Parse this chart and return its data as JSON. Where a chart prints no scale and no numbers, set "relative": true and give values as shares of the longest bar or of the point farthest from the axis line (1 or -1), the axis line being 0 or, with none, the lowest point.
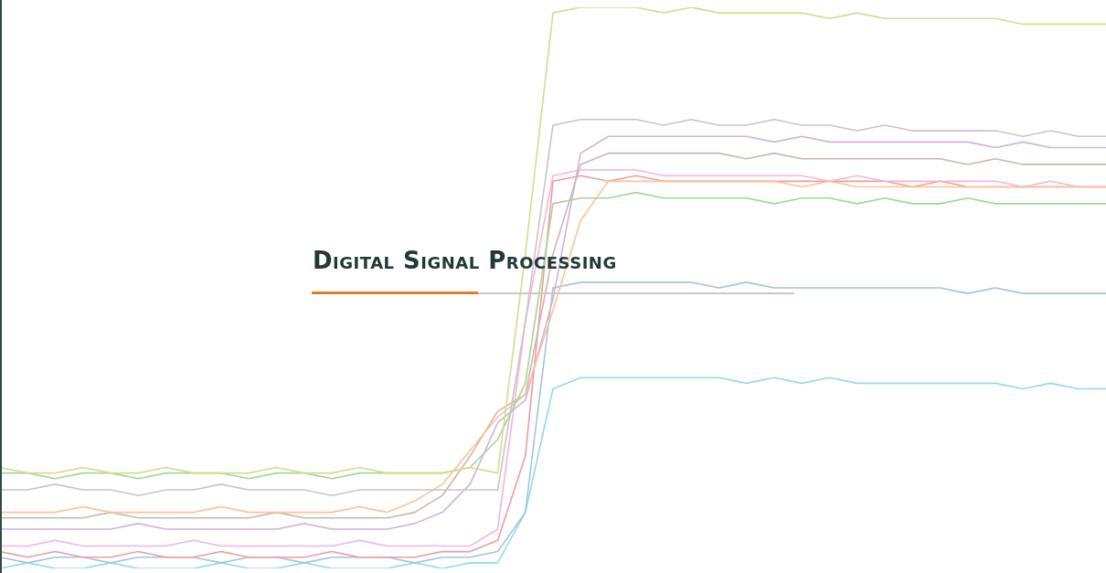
{
  "chart_data": {
    "type": "line",
    "title": "Digital Signal Processing",
    "relative": true,
    "legend": false,
    "marker": "none",
    "line_style": "solid",
    "categories": [
      null,
      null,
      null,
      null,
      null,
      null,
      null,
      null,
      null,
      null,
      null,
      null,
      null,
      null,
      null,
      null,
      null,
      null,
      null,
      null,
      null,
      null,
      null,
      null,
      null,
      null,
      null,
      null,
      null,
      null,
      null,
      null,
      null,
      null,
      null,
      null,
      null,
      null,
      null,
      null,
      null
    ],
    "series": [
      {
        "color": "#d5dc8e",
        "values": [
          0.18,
          0.17,
          0.17,
          0.18,
          0.17,
          0.17,
          0.18,
          0.17,
          0.17,
          0.17,
          0.18,
          0.17,
          0.17,
          0.18,
          0.17,
          0.17,
          0.17,
          0.18,
          0.17,
          0.56,
          0.99,
          1.0,
          1.0,
          1.0,
          0.99,
          1.0,
          0.99,
          0.99,
          0.99,
          0.99,
          0.98,
          0.99,
          0.98,
          0.98,
          0.98,
          0.98,
          0.98,
          0.97,
          0.97,
          0.97,
          0.97
        ]
      },
      {
        "color": "#a3d69c",
        "values": [
          0.17,
          0.17,
          0.16,
          0.17,
          0.17,
          0.16,
          0.17,
          0.17,
          0.17,
          0.16,
          0.17,
          0.17,
          0.16,
          0.17,
          0.17,
          0.17,
          0.17,
          0.18,
          0.23,
          0.33,
          0.65,
          0.66,
          0.66,
          0.67,
          0.66,
          0.66,
          0.66,
          0.66,
          0.65,
          0.66,
          0.66,
          0.65,
          0.66,
          0.65,
          0.65,
          0.66,
          0.65,
          0.65,
          0.65,
          0.65,
          0.65
        ]
      },
      {
        "color": "#c9c5c5",
        "values": [
          0.14,
          0.14,
          0.15,
          0.14,
          0.14,
          0.13,
          0.14,
          0.14,
          0.15,
          0.14,
          0.14,
          0.14,
          0.13,
          0.14,
          0.14,
          0.14,
          0.14,
          0.14,
          0.14,
          0.44,
          0.79,
          0.8,
          0.8,
          0.8,
          0.79,
          0.8,
          0.79,
          0.79,
          0.8,
          0.79,
          0.79,
          0.78,
          0.79,
          0.78,
          0.78,
          0.78,
          0.78,
          0.77,
          0.78,
          0.77,
          0.77
        ]
      },
      {
        "color": "#fdc293",
        "values": [
          0.1,
          0.1,
          0.1,
          0.11,
          0.1,
          0.1,
          0.1,
          0.1,
          0.11,
          0.1,
          0.1,
          0.1,
          0.1,
          0.11,
          0.1,
          0.12,
          0.15,
          0.21,
          0.27,
          0.31,
          0.46,
          0.62,
          0.69,
          0.69,
          0.69,
          0.69,
          0.69,
          0.69,
          0.69,
          0.68,
          0.69,
          0.68,
          0.68,
          0.68,
          0.68,
          0.68,
          0.68,
          0.68,
          0.68,
          0.68,
          0.68
        ]
      },
      {
        "color": "#cdb6ae",
        "values": [
          0.09,
          0.09,
          0.09,
          0.09,
          0.1,
          0.09,
          0.09,
          0.09,
          0.09,
          0.09,
          0.1,
          0.09,
          0.09,
          0.09,
          0.09,
          0.1,
          0.13,
          0.2,
          0.28,
          0.31,
          0.56,
          0.72,
          0.74,
          0.74,
          0.74,
          0.74,
          0.74,
          0.73,
          0.74,
          0.73,
          0.73,
          0.73,
          0.73,
          0.73,
          0.73,
          0.72,
          0.73,
          0.72,
          0.72,
          0.72,
          0.72
        ]
      },
      {
        "color": "#cdb3e2",
        "values": [
          0.07,
          0.07,
          0.07,
          0.07,
          0.07,
          0.08,
          0.07,
          0.07,
          0.07,
          0.07,
          0.07,
          0.08,
          0.07,
          0.07,
          0.07,
          0.08,
          0.1,
          0.15,
          0.26,
          0.3,
          0.48,
          0.74,
          0.77,
          0.77,
          0.77,
          0.77,
          0.77,
          0.77,
          0.76,
          0.77,
          0.76,
          0.76,
          0.76,
          0.76,
          0.76,
          0.76,
          0.75,
          0.76,
          0.75,
          0.75,
          0.75
        ]
      },
      {
        "color": "#f4b4da",
        "values": [
          0.04,
          0.04,
          0.05,
          0.04,
          0.04,
          0.04,
          0.04,
          0.05,
          0.04,
          0.04,
          0.04,
          0.04,
          0.04,
          0.05,
          0.04,
          0.04,
          0.04,
          0.04,
          0.07,
          0.44,
          0.7,
          0.71,
          0.71,
          0.71,
          0.7,
          0.7,
          0.7,
          0.7,
          0.7,
          0.7,
          0.69,
          0.7,
          0.69,
          0.69,
          0.69,
          0.69,
          0.69,
          0.68,
          0.69,
          0.68,
          0.68
        ]
      },
      {
        "color": "#ef9c9c",
        "values": [
          0.03,
          0.02,
          0.03,
          0.02,
          0.02,
          0.03,
          0.02,
          0.02,
          0.03,
          0.02,
          0.02,
          0.02,
          0.03,
          0.02,
          0.02,
          0.02,
          0.03,
          0.03,
          0.05,
          0.2,
          0.69,
          0.7,
          0.69,
          0.7,
          0.69,
          0.69,
          0.69,
          0.69,
          0.69,
          0.69,
          0.69,
          0.69,
          0.69,
          0.68,
          0.69,
          0.68,
          0.68,
          0.68,
          0.68,
          0.68,
          0.68
        ]
      },
      {
        "color": "#a2c4e2",
        "values": [
          0.02,
          0.01,
          0.02,
          0.02,
          0.01,
          0.02,
          0.02,
          0.02,
          0.01,
          0.02,
          0.02,
          0.01,
          0.02,
          0.02,
          0.02,
          0.01,
          0.02,
          0.02,
          0.03,
          0.1,
          0.5,
          0.51,
          0.51,
          0.51,
          0.51,
          0.51,
          0.5,
          0.51,
          0.5,
          0.5,
          0.5,
          0.5,
          0.5,
          0.5,
          0.5,
          0.49,
          0.5,
          0.49,
          0.49,
          0.49,
          0.49
        ]
      },
      {
        "color": "#92dbe8",
        "values": [
          0.0,
          0.01,
          0.0,
          0.0,
          0.01,
          0.0,
          0.0,
          0.0,
          0.01,
          0.0,
          0.0,
          0.01,
          0.0,
          0.0,
          0.0,
          0.01,
          0.0,
          0.01,
          0.01,
          0.1,
          0.32,
          0.34,
          0.34,
          0.34,
          0.34,
          0.34,
          0.34,
          0.33,
          0.34,
          0.33,
          0.34,
          0.33,
          0.33,
          0.33,
          0.33,
          0.33,
          0.33,
          0.32,
          0.33,
          0.32,
          0.32
        ]
      }
    ]
  }
}
